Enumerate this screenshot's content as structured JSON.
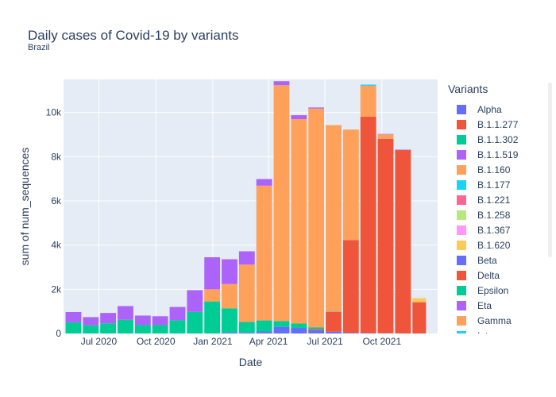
{
  "title": "Daily cases of Covid-19 by variants",
  "subtitle": "Brazil",
  "legend_title": "Variants",
  "variants": [
    {
      "name": "Alpha",
      "color": "#636efa"
    },
    {
      "name": "B.1.1.277",
      "color": "#EF553B"
    },
    {
      "name": "B.1.1.302",
      "color": "#00cc96"
    },
    {
      "name": "B.1.1.519",
      "color": "#ab63fa"
    },
    {
      "name": "B.1.160",
      "color": "#FFA15A"
    },
    {
      "name": "B.1.177",
      "color": "#19d3f3"
    },
    {
      "name": "B.1.221",
      "color": "#FF6692"
    },
    {
      "name": "B.1.258",
      "color": "#B6E880"
    },
    {
      "name": "B.1.367",
      "color": "#FF97FF"
    },
    {
      "name": "B.1.620",
      "color": "#FECB52"
    },
    {
      "name": "Beta",
      "color": "#636efa"
    },
    {
      "name": "Delta",
      "color": "#EF553B"
    },
    {
      "name": "Epsilon",
      "color": "#00cc96"
    },
    {
      "name": "Eta",
      "color": "#ab63fa"
    },
    {
      "name": "Gamma",
      "color": "#FFA15A"
    },
    {
      "name": "Iota",
      "color": "#19d3f3"
    }
  ],
  "chart_data": {
    "type": "bar",
    "barmode": "stack",
    "title": "Daily cases of Covid-19 by variants",
    "subtitle": "Brazil",
    "xlabel": "Date",
    "ylabel": "sum of num_sequences",
    "ylim": [
      0,
      11500
    ],
    "yticks": [
      0,
      2000,
      4000,
      6000,
      8000,
      10000
    ],
    "ytick_labels": [
      "0",
      "2k",
      "4k",
      "6k",
      "8k",
      "10k"
    ],
    "xlim": [
      "2020-05-05",
      "2021-12-30"
    ],
    "xticks": [
      "2020-07-01",
      "2020-10-01",
      "2021-01-01",
      "2021-04-01",
      "2021-07-01",
      "2021-10-01"
    ],
    "xtick_labels": [
      "Jul 2020",
      "Oct 2020",
      "Jan 2021",
      "Apr 2021",
      "Jul 2021",
      "Oct 2021"
    ],
    "grid": true,
    "legend": "right",
    "x": [
      "2020-05-21",
      "2020-06-18",
      "2020-07-16",
      "2020-08-13",
      "2020-09-10",
      "2020-10-08",
      "2020-11-05",
      "2020-12-03",
      "2020-12-31",
      "2021-01-28",
      "2021-02-25",
      "2021-03-25",
      "2021-04-22",
      "2021-05-20",
      "2021-06-17",
      "2021-07-15",
      "2021-08-12",
      "2021-09-09",
      "2021-10-07",
      "2021-11-04",
      "2021-12-02",
      "2021-12-23"
    ],
    "series": [
      {
        "name": "Alpha",
        "values": [
          0,
          0,
          0,
          0,
          0,
          0,
          0,
          0,
          0,
          0,
          20,
          60,
          300,
          250,
          150,
          80,
          30,
          15,
          10,
          0,
          0,
          0
        ]
      },
      {
        "name": "B.1.1.302",
        "values": [
          0,
          0,
          0,
          0,
          0,
          0,
          0,
          0,
          0,
          0,
          0,
          0,
          0,
          0,
          0,
          0,
          0,
          0,
          0,
          0,
          0,
          0
        ]
      },
      {
        "name": "B.1.1.519",
        "values": [
          0,
          0,
          0,
          0,
          0,
          0,
          0,
          0,
          0,
          0,
          0,
          0,
          0,
          0,
          0,
          0,
          0,
          0,
          0,
          0,
          0,
          0
        ]
      },
      {
        "name": "B.1.1.277",
        "values": [
          0,
          0,
          0,
          0,
          0,
          0,
          0,
          0,
          0,
          0,
          0,
          0,
          0,
          0,
          0,
          0,
          0,
          0,
          0,
          0,
          0,
          0
        ]
      },
      {
        "name": "Beta",
        "values": [
          0,
          0,
          0,
          0,
          0,
          0,
          0,
          0,
          0,
          40,
          20,
          30,
          0,
          0,
          0,
          0,
          0,
          0,
          0,
          0,
          0,
          0
        ]
      },
      {
        "name": "Delta",
        "values": [
          0,
          0,
          0,
          0,
          0,
          0,
          0,
          0,
          0,
          0,
          0,
          0,
          0,
          0,
          50,
          900,
          4200,
          9800,
          8800,
          8300,
          1400,
          0
        ]
      },
      {
        "name": "Epsilon",
        "values": [
          500,
          370,
          460,
          620,
          380,
          380,
          600,
          980,
          1450,
          1100,
          480,
          500,
          260,
          200,
          80,
          10,
          0,
          0,
          0,
          0,
          0,
          0
        ]
      },
      {
        "name": "Gamma",
        "values": [
          0,
          0,
          0,
          0,
          0,
          0,
          0,
          0,
          550,
          1100,
          2600,
          6100,
          10680,
          9250,
          9900,
          8440,
          5000,
          1400,
          200,
          0,
          50,
          0
        ]
      },
      {
        "name": "B.1.620",
        "values": [
          0,
          0,
          0,
          0,
          0,
          0,
          0,
          0,
          0,
          0,
          0,
          0,
          0,
          0,
          0,
          0,
          0,
          0,
          0,
          0,
          150,
          0
        ]
      },
      {
        "name": "Iota",
        "values": [
          0,
          0,
          0,
          0,
          0,
          0,
          0,
          0,
          0,
          0,
          0,
          0,
          0,
          0,
          0,
          0,
          0,
          50,
          0,
          0,
          0,
          0
        ]
      },
      {
        "name": "Eta",
        "values": [
          470,
          370,
          470,
          620,
          430,
          400,
          600,
          980,
          1450,
          1120,
          600,
          300,
          180,
          180,
          50,
          0,
          0,
          0,
          20,
          20,
          0,
          0
        ]
      }
    ]
  }
}
